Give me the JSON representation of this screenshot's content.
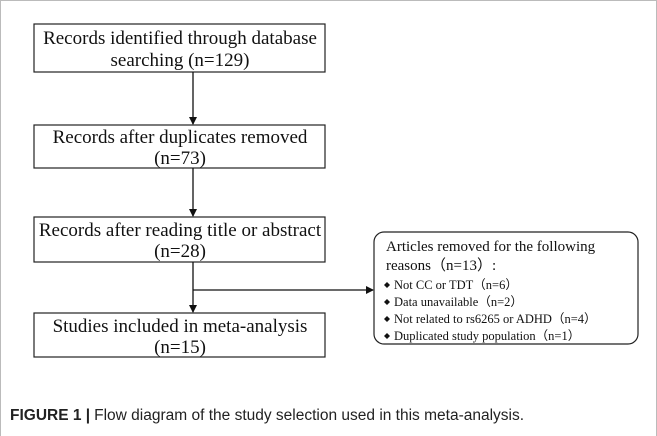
{
  "nodes": [
    {
      "lines": [
        "Records identified through database",
        "searching  (n=129)"
      ]
    },
    {
      "lines": [
        "Records after duplicates removed",
        "(n=73)"
      ]
    },
    {
      "lines": [
        "Records after reading title or abstract",
        "(n=28)"
      ]
    },
    {
      "lines": [
        "Studies included in meta-analysis",
        "(n=15)"
      ]
    }
  ],
  "excluded": {
    "lines": [
      "Articles removed for the following",
      "reasons（n=13）:"
    ],
    "items": [
      "Not CC or TDT（n=6）",
      "Data unavailable（n=2）",
      "Not related to rs6265 or ADHD（n=4）",
      "Duplicated study population（n=1）"
    ]
  },
  "caption": {
    "label": "FIGURE 1 |",
    "text": "Flow diagram of the study selection used in this meta-analysis."
  }
}
